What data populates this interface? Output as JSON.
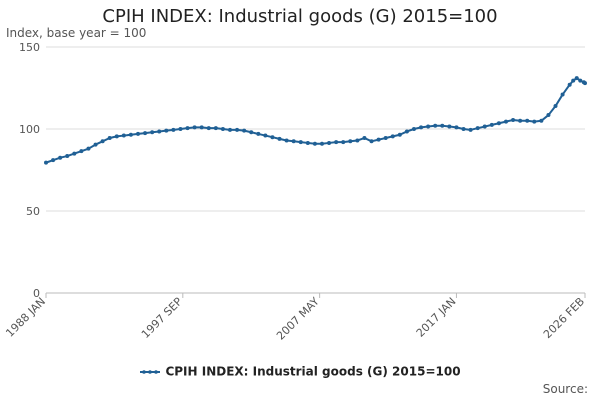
{
  "chart_data": {
    "type": "line",
    "title": "CPIH INDEX: Industrial goods (G) 2015=100",
    "ylabel": "Index, base year = 100",
    "xlabel": "",
    "ylim": [
      0,
      150
    ],
    "y_ticks": [
      0,
      50,
      100,
      150
    ],
    "x_range": [
      "1988-01",
      "2026-02"
    ],
    "x_ticks": [
      {
        "label": "1988 JAN",
        "date": "1988-01"
      },
      {
        "label": "1997 SEP",
        "date": "1997-09"
      },
      {
        "label": "2007 MAY",
        "date": "2007-05"
      },
      {
        "label": "2017 JAN",
        "date": "2017-01"
      },
      {
        "label": "2026 FEB",
        "date": "2026-02"
      }
    ],
    "grid": "horizontal",
    "legend": "bottom",
    "series": [
      {
        "name": "CPIH INDEX: Industrial goods (G) 2015=100",
        "color": "#206095",
        "points": [
          [
            "1988-01",
            79.5
          ],
          [
            "1988-07",
            81.0
          ],
          [
            "1989-01",
            82.5
          ],
          [
            "1989-07",
            83.5
          ],
          [
            "1990-01",
            85.0
          ],
          [
            "1990-07",
            86.5
          ],
          [
            "1991-01",
            88.0
          ],
          [
            "1991-07",
            90.5
          ],
          [
            "1992-01",
            92.5
          ],
          [
            "1992-07",
            94.5
          ],
          [
            "1993-01",
            95.5
          ],
          [
            "1993-07",
            96.0
          ],
          [
            "1994-01",
            96.5
          ],
          [
            "1994-07",
            97.0
          ],
          [
            "1995-01",
            97.5
          ],
          [
            "1995-07",
            98.0
          ],
          [
            "1996-01",
            98.5
          ],
          [
            "1996-07",
            99.0
          ],
          [
            "1997-01",
            99.5
          ],
          [
            "1997-07",
            100.0
          ],
          [
            "1998-01",
            100.5
          ],
          [
            "1998-07",
            101.0
          ],
          [
            "1999-01",
            101.0
          ],
          [
            "1999-07",
            100.5
          ],
          [
            "2000-01",
            100.5
          ],
          [
            "2000-07",
            100.0
          ],
          [
            "2001-01",
            99.5
          ],
          [
            "2001-07",
            99.5
          ],
          [
            "2002-01",
            99.0
          ],
          [
            "2002-07",
            98.0
          ],
          [
            "2003-01",
            97.0
          ],
          [
            "2003-07",
            96.0
          ],
          [
            "2004-01",
            95.0
          ],
          [
            "2004-07",
            94.0
          ],
          [
            "2005-01",
            93.0
          ],
          [
            "2005-07",
            92.5
          ],
          [
            "2006-01",
            92.0
          ],
          [
            "2006-07",
            91.5
          ],
          [
            "2007-01",
            91.0
          ],
          [
            "2007-07",
            91.0
          ],
          [
            "2008-01",
            91.5
          ],
          [
            "2008-07",
            92.0
          ],
          [
            "2009-01",
            92.0
          ],
          [
            "2009-07",
            92.5
          ],
          [
            "2010-01",
            93.0
          ],
          [
            "2010-07",
            94.5
          ],
          [
            "2011-01",
            92.5
          ],
          [
            "2011-07",
            93.5
          ],
          [
            "2012-01",
            94.5
          ],
          [
            "2012-07",
            95.5
          ],
          [
            "2013-01",
            96.5
          ],
          [
            "2013-07",
            98.5
          ],
          [
            "2014-01",
            100.0
          ],
          [
            "2014-07",
            101.0
          ],
          [
            "2015-01",
            101.5
          ],
          [
            "2015-07",
            102.0
          ],
          [
            "2016-01",
            102.0
          ],
          [
            "2016-07",
            101.5
          ],
          [
            "2017-01",
            101.0
          ],
          [
            "2017-07",
            100.0
          ],
          [
            "2018-01",
            99.5
          ],
          [
            "2018-07",
            100.5
          ],
          [
            "2019-01",
            101.5
          ],
          [
            "2019-07",
            102.5
          ],
          [
            "2020-01",
            103.5
          ],
          [
            "2020-07",
            104.5
          ],
          [
            "2021-01",
            105.5
          ],
          [
            "2021-07",
            105.0
          ],
          [
            "2022-01",
            105.0
          ],
          [
            "2022-07",
            104.5
          ],
          [
            "2023-01",
            105.0
          ],
          [
            "2023-07",
            108.5
          ],
          [
            "2024-01",
            114.0
          ],
          [
            "2024-07",
            121.0
          ],
          [
            "2025-01",
            127.0
          ],
          [
            "2025-04",
            129.5
          ],
          [
            "2025-07",
            131.0
          ],
          [
            "2025-10",
            129.5
          ],
          [
            "2026-01",
            128.5
          ],
          [
            "2026-02",
            128.0
          ]
        ]
      }
    ]
  },
  "source_label": "Source:"
}
